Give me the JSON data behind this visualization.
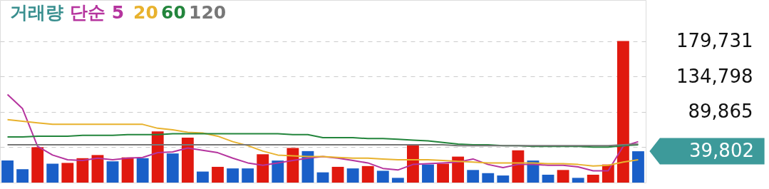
{
  "chart_data": {
    "type": "bar",
    "title": "거래량",
    "categories": [
      null,
      null,
      null,
      null,
      null,
      null,
      null,
      null,
      null,
      null,
      null,
      null,
      null,
      null,
      null,
      null,
      null,
      null,
      null,
      null,
      null,
      null,
      null,
      null,
      null,
      null,
      null,
      null,
      null,
      null,
      null,
      null,
      null,
      null,
      null,
      null,
      null,
      null,
      null,
      null,
      null,
      null,
      null
    ],
    "series": [
      {
        "colors": [
          "#1a5fc8",
          "#1a5fc8",
          "#e0190f",
          "#1a5fc8",
          "#e0190f",
          "#e0190f",
          "#e0190f",
          "#1a5fc8",
          "#e0190f",
          "#1a5fc8",
          "#e0190f",
          "#1a5fc8",
          "#e0190f",
          "#1a5fc8",
          "#e0190f",
          "#1a5fc8",
          "#1a5fc8",
          "#e0190f",
          "#1a5fc8",
          "#e0190f",
          "#1a5fc8",
          "#1a5fc8",
          "#e0190f",
          "#1a5fc8",
          "#e0190f",
          "#1a5fc8",
          "#1a5fc8",
          "#e0190f",
          "#1a5fc8",
          "#e0190f",
          "#e0190f",
          "#1a5fc8",
          "#1a5fc8",
          "#1a5fc8",
          "#e0190f",
          "#1a5fc8",
          "#1a5fc8",
          "#e0190f",
          "#1a5fc8",
          "#e0190f",
          "#e0190f",
          "#e0190f",
          "#1a5fc8"
        ],
        "values": [
          28000,
          17000,
          45000,
          24000,
          25000,
          31000,
          35000,
          27000,
          32000,
          31000,
          65000,
          37000,
          57000,
          14000,
          20000,
          18000,
          18000,
          36000,
          28000,
          44000,
          40000,
          13000,
          20000,
          18000,
          21000,
          15000,
          6000,
          48000,
          23000,
          24000,
          33000,
          16000,
          12000,
          9000,
          41000,
          28000,
          10000,
          16000,
          6000,
          10000,
          23000,
          180000,
          39802
        ]
      },
      {
        "type": "line",
        "name": "단순 5",
        "color": "#b5349e",
        "values": [
          112000,
          94000,
          46000,
          35000,
          29000,
          28000,
          31000,
          29000,
          31000,
          32000,
          38000,
          39000,
          44000,
          41000,
          38000,
          31000,
          25000,
          22000,
          25000,
          28000,
          31000,
          33000,
          31000,
          28000,
          25000,
          18000,
          16000,
          23000,
          24000,
          25000,
          26000,
          30000,
          23000,
          19000,
          23000,
          23000,
          22000,
          22000,
          20000,
          15000,
          15000,
          46000,
          52000
        ]
      },
      {
        "type": "line",
        "name": "20",
        "color": "#e8b22e",
        "values": [
          80000,
          78000,
          76000,
          74000,
          74000,
          74000,
          74000,
          74000,
          74000,
          74000,
          69000,
          67000,
          64000,
          63000,
          59000,
          52000,
          47000,
          40000,
          35000,
          34000,
          33000,
          33000,
          32000,
          31000,
          31000,
          30000,
          29000,
          29000,
          29000,
          28000,
          27000,
          26000,
          25000,
          25000,
          25000,
          25000,
          24000,
          24000,
          23000,
          21000,
          22000,
          26000,
          29000
        ]
      },
      {
        "type": "line",
        "name": "60",
        "color": "#23853c",
        "values": [
          58000,
          58000,
          59000,
          59000,
          59000,
          60000,
          60000,
          60000,
          61000,
          61000,
          61000,
          62000,
          62000,
          62000,
          62000,
          62000,
          62000,
          62000,
          62000,
          61000,
          61000,
          57000,
          57000,
          57000,
          56000,
          56000,
          55000,
          54000,
          53000,
          51000,
          49000,
          48000,
          48000,
          47000,
          47000,
          46000,
          46000,
          46000,
          46000,
          45000,
          45000,
          47000,
          48000
        ]
      },
      {
        "type": "line",
        "name": "120",
        "color": "#777777",
        "values": [
          48000,
          48000,
          48000,
          48000,
          48000,
          48000,
          48000,
          48000,
          48000,
          48000,
          48000,
          48000,
          48000,
          48000,
          48000,
          48000,
          48000,
          48000,
          48000,
          48000,
          48000,
          48000,
          48000,
          48000,
          48000,
          48000,
          48000,
          48000,
          48000,
          48000,
          47000,
          47000,
          47000,
          47000,
          47000,
          47000,
          47000,
          47000,
          47000,
          47000,
          47000,
          48000,
          49000
        ]
      }
    ],
    "ylim": [
      0,
      232000
    ],
    "yticks": [
      {
        "value": 44932,
        "label": null
      },
      {
        "value": 89865,
        "label": "89,865"
      },
      {
        "value": 134798,
        "label": "134,798"
      },
      {
        "value": 179731,
        "label": "179,731"
      }
    ],
    "annotations": [
      "39,802"
    ],
    "grid": "y",
    "legend": "top left",
    "tick_labels": "y"
  }
}
